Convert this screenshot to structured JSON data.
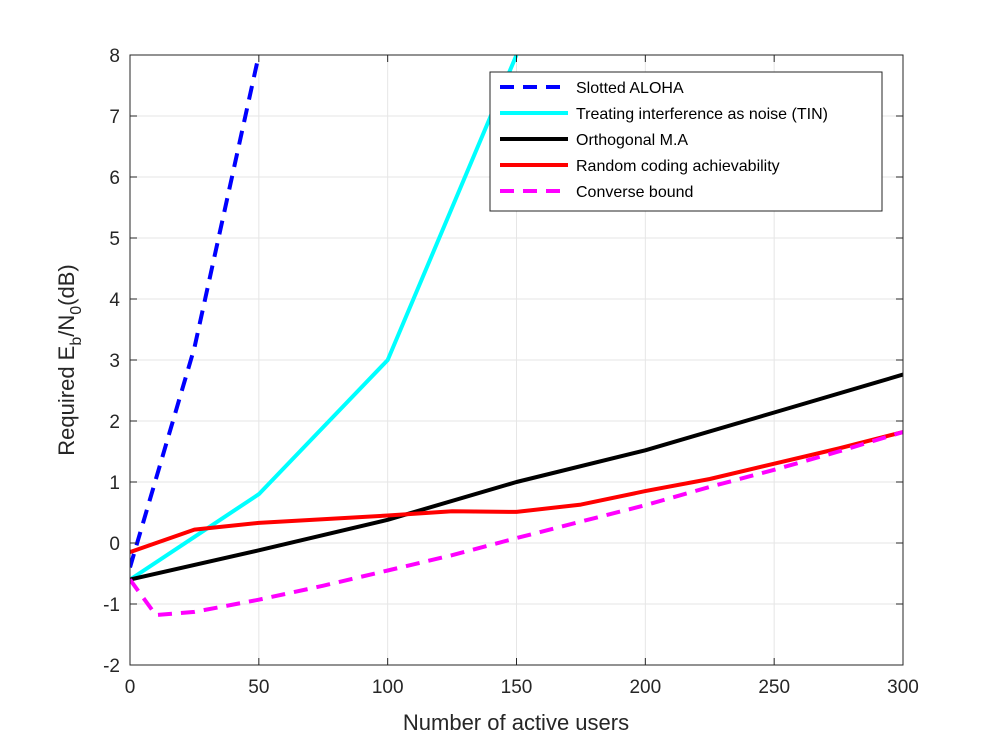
{
  "chart_data": {
    "type": "line",
    "xlabel": "Number of active users",
    "ylabel": {
      "base": "Required E",
      "sub1": "b",
      "mid": "/N",
      "sub2": "0",
      "tail": "(dB)"
    },
    "xlim": [
      0,
      300
    ],
    "ylim": [
      -2,
      8
    ],
    "xticks": [
      0,
      50,
      100,
      150,
      200,
      250,
      300
    ],
    "yticks": [
      -2,
      -1,
      0,
      1,
      2,
      3,
      4,
      5,
      6,
      7,
      8
    ],
    "grid": true,
    "legend_position": "top-right",
    "series": [
      {
        "name": "Slotted ALOHA",
        "color": "#0000ff",
        "dashed": true,
        "x": [
          0,
          25,
          50
        ],
        "y": [
          -0.4,
          3.2,
          8.0
        ]
      },
      {
        "name": "Treating interference as noise (TIN)",
        "color": "#00ffff",
        "dashed": false,
        "x": [
          0,
          25,
          50,
          100,
          150
        ],
        "y": [
          -0.6,
          0.1,
          0.8,
          3.0,
          8.0
        ]
      },
      {
        "name": "Orthogonal M.A",
        "color": "#000000",
        "dashed": false,
        "x": [
          0,
          50,
          100,
          150,
          200,
          250,
          300
        ],
        "y": [
          -0.6,
          -0.12,
          0.38,
          1.0,
          1.52,
          2.14,
          2.76
        ]
      },
      {
        "name": "Random coding achievability",
        "color": "#ff0000",
        "dashed": false,
        "x": [
          0,
          25,
          50,
          100,
          125,
          150,
          175,
          200,
          225,
          250,
          275,
          300
        ],
        "y": [
          -0.15,
          0.22,
          0.33,
          0.45,
          0.52,
          0.51,
          0.63,
          0.85,
          1.05,
          1.3,
          1.55,
          1.82
        ]
      },
      {
        "name": "Converse bound",
        "color": "#ff00ff",
        "dashed": true,
        "x": [
          0,
          10,
          25,
          50,
          75,
          100,
          125,
          150,
          175,
          200,
          225,
          250,
          275,
          300
        ],
        "y": [
          -0.6,
          -1.18,
          -1.13,
          -0.93,
          -0.7,
          -0.45,
          -0.2,
          0.08,
          0.35,
          0.62,
          0.92,
          1.2,
          1.5,
          1.82
        ]
      }
    ]
  }
}
